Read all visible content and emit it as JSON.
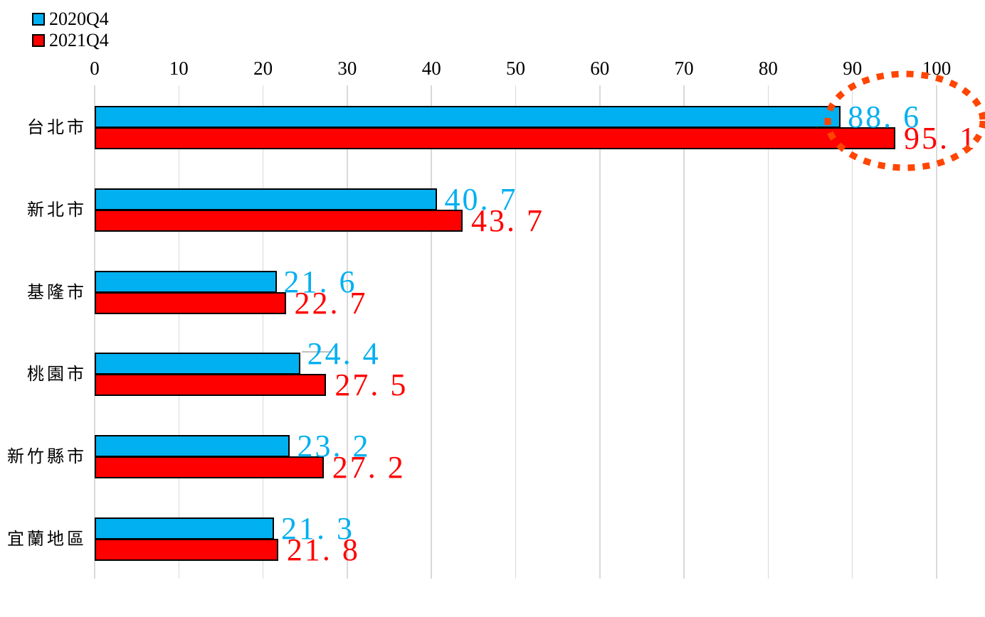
{
  "legend": {
    "items": [
      {
        "label": "2020Q4",
        "color": "#00B0F0"
      },
      {
        "label": "2021Q4",
        "color": "#FF0000"
      }
    ]
  },
  "axis": {
    "ticks": [
      0,
      10,
      20,
      30,
      40,
      50,
      60,
      70,
      80,
      90,
      100
    ],
    "tick_labels": [
      "0",
      "10",
      "20",
      "30",
      "40",
      "50",
      "60",
      "70",
      "80",
      "90",
      "100"
    ],
    "gridline_color": "#D9D9D9"
  },
  "chart_data": {
    "type": "bar",
    "orientation": "horizontal",
    "title": "",
    "categories": [
      "台北市",
      "新北市",
      "基隆市",
      "桃園市",
      "新竹縣市",
      "宜蘭地區"
    ],
    "series": [
      {
        "name": "2020Q4",
        "color": "#00B0F0",
        "values": [
          88.6,
          40.7,
          21.6,
          24.4,
          23.2,
          21.3
        ],
        "display_labels": [
          "88. 6",
          "40. 7",
          "21. 6",
          "24. 4",
          "23. 2",
          "21. 3"
        ]
      },
      {
        "name": "2021Q4",
        "color": "#FF0000",
        "values": [
          95.1,
          43.7,
          22.7,
          27.5,
          27.2,
          21.8
        ],
        "display_labels": [
          "95. 1",
          "43. 7",
          "22. 7",
          "27. 5",
          "27. 2",
          "21. 8"
        ]
      }
    ],
    "xlim": [
      0,
      100
    ],
    "grid": "vertical",
    "legend_position": "top-left",
    "bar_border_color": "#000000",
    "value_label_colors": [
      "#00B0F0",
      "#FF0000"
    ]
  },
  "annotations": {
    "highlight_ellipse": {
      "shape": "dotted-ellipse",
      "color": "#FF4500",
      "around": "台北市 value labels 88.6 and 95.1"
    },
    "leader_line": {
      "category": "桃園市",
      "series": "2020Q4",
      "color": "#BFBFBF"
    }
  }
}
